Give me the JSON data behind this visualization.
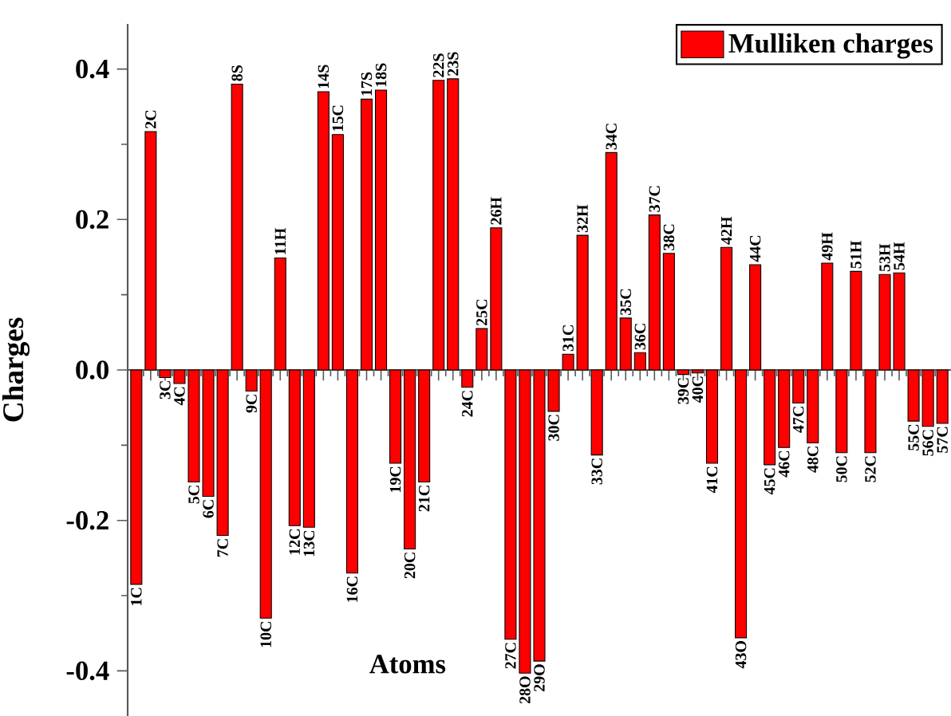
{
  "chart_data": {
    "type": "bar",
    "xlabel": "Atoms",
    "ylabel": "Charges",
    "categories": [
      "1C",
      "2C",
      "3C",
      "4C",
      "5C",
      "6C",
      "7C",
      "8S",
      "9C",
      "10C",
      "11H",
      "12C",
      "13C",
      "14S",
      "15C",
      "16C",
      "17S",
      "18S",
      "19C",
      "20C",
      "21C",
      "22S",
      "23S",
      "24C",
      "25C",
      "26H",
      "27C",
      "28O",
      "29O",
      "30C",
      "31C",
      "32H",
      "33C",
      "34C",
      "35C",
      "36C",
      "37C",
      "38C",
      "39C",
      "40C",
      "41C",
      "42H",
      "43O",
      "44C",
      "45C",
      "46C",
      "47C",
      "48C",
      "49H",
      "50C",
      "51H",
      "52C",
      "53H",
      "54H",
      "55C",
      "56C",
      "57C"
    ],
    "series": [
      {
        "name": "Mulliken charges",
        "color": "#ff0000",
        "values": [
          -0.285,
          0.317,
          -0.01,
          -0.018,
          -0.149,
          -0.168,
          -0.22,
          0.38,
          -0.028,
          -0.33,
          0.149,
          -0.207,
          -0.209,
          0.37,
          0.313,
          -0.27,
          0.36,
          0.372,
          -0.124,
          -0.238,
          -0.149,
          0.385,
          0.387,
          -0.023,
          0.055,
          0.189,
          -0.358,
          -0.403,
          -0.387,
          -0.055,
          0.021,
          0.179,
          -0.113,
          0.289,
          0.069,
          0.023,
          0.206,
          0.155,
          -0.006,
          -0.004,
          -0.124,
          0.163,
          -0.356,
          0.14,
          -0.126,
          -0.103,
          -0.044,
          -0.097,
          0.142,
          -0.11,
          0.131,
          -0.11,
          0.127,
          0.129,
          -0.068,
          -0.075,
          -0.071
        ]
      }
    ],
    "ylim": [
      -0.46,
      0.46
    ],
    "yticks": [
      {
        "value": -0.4,
        "label": "-0.4"
      },
      {
        "value": -0.2,
        "label": "-0.2"
      },
      {
        "value": 0,
        "label": "0.0"
      },
      {
        "value": 0.2,
        "label": "0.2"
      },
      {
        "value": 0.4,
        "label": "0.4"
      }
    ],
    "grid": false,
    "legend": "top right"
  }
}
